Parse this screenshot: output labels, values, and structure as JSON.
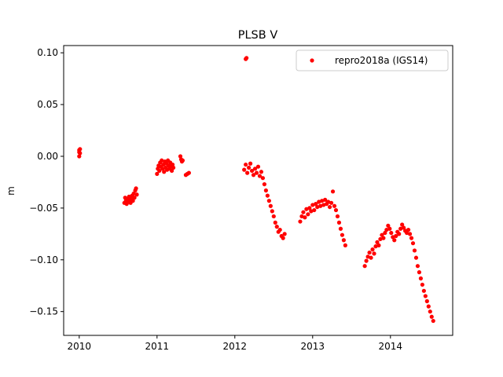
{
  "chart_data": {
    "type": "scatter",
    "title": "PLSB V",
    "xlabel": "",
    "ylabel": "m",
    "xlim": [
      2009.8,
      2014.8
    ],
    "ylim": [
      -0.173,
      0.107
    ],
    "xticks": [
      2010,
      2011,
      2012,
      2013,
      2014
    ],
    "xtick_labels": [
      "2010",
      "2011",
      "2012",
      "2013",
      "2014"
    ],
    "yticks": [
      0.1,
      0.05,
      0.0,
      -0.05,
      -0.1,
      -0.15
    ],
    "ytick_labels": [
      "0.10",
      "0.05",
      "0.00",
      "−0.05",
      "−0.10",
      "−0.15"
    ],
    "grid": false,
    "legend_position": "top-right",
    "series": [
      {
        "name": "repro2018a (IGS14)",
        "color": "#ff0000",
        "marker": "circle",
        "points": [
          [
            2010.0,
            0.0
          ],
          [
            2010.0,
            0.004
          ],
          [
            2010.0,
            0.006
          ],
          [
            2010.01,
            0.007
          ],
          [
            2010.01,
            0.003
          ],
          [
            2010.58,
            -0.045
          ],
          [
            2010.59,
            -0.04
          ],
          [
            2010.6,
            -0.043
          ],
          [
            2010.61,
            -0.046
          ],
          [
            2010.62,
            -0.041
          ],
          [
            2010.63,
            -0.044
          ],
          [
            2010.64,
            -0.039
          ],
          [
            2010.65,
            -0.042
          ],
          [
            2010.66,
            -0.045
          ],
          [
            2010.67,
            -0.04
          ],
          [
            2010.68,
            -0.038
          ],
          [
            2010.69,
            -0.043
          ],
          [
            2010.7,
            -0.036
          ],
          [
            2010.71,
            -0.04
          ],
          [
            2010.72,
            -0.033
          ],
          [
            2010.73,
            -0.031
          ],
          [
            2010.74,
            -0.037
          ],
          [
            2011.0,
            -0.017
          ],
          [
            2011.01,
            -0.012
          ],
          [
            2011.02,
            -0.009
          ],
          [
            2011.03,
            -0.014
          ],
          [
            2011.04,
            -0.006
          ],
          [
            2011.05,
            -0.01
          ],
          [
            2011.06,
            -0.004
          ],
          [
            2011.07,
            -0.012
          ],
          [
            2011.08,
            -0.008
          ],
          [
            2011.09,
            -0.015
          ],
          [
            2011.1,
            -0.005
          ],
          [
            2011.11,
            -0.011
          ],
          [
            2011.12,
            -0.007
          ],
          [
            2011.13,
            -0.013
          ],
          [
            2011.14,
            -0.004
          ],
          [
            2011.15,
            -0.009
          ],
          [
            2011.16,
            -0.012
          ],
          [
            2011.17,
            -0.006
          ],
          [
            2011.18,
            -0.01
          ],
          [
            2011.19,
            -0.014
          ],
          [
            2011.2,
            -0.008
          ],
          [
            2011.21,
            -0.011
          ],
          [
            2011.3,
            0.0
          ],
          [
            2011.31,
            -0.003
          ],
          [
            2011.32,
            -0.005
          ],
          [
            2011.33,
            -0.004
          ],
          [
            2011.37,
            -0.018
          ],
          [
            2011.39,
            -0.017
          ],
          [
            2011.41,
            -0.016
          ],
          [
            2012.14,
            0.094
          ],
          [
            2012.15,
            0.095
          ],
          [
            2012.12,
            -0.013
          ],
          [
            2012.14,
            -0.008
          ],
          [
            2012.16,
            -0.016
          ],
          [
            2012.18,
            -0.011
          ],
          [
            2012.2,
            -0.007
          ],
          [
            2012.22,
            -0.014
          ],
          [
            2012.24,
            -0.018
          ],
          [
            2012.26,
            -0.012
          ],
          [
            2012.28,
            -0.016
          ],
          [
            2012.3,
            -0.01
          ],
          [
            2012.32,
            -0.019
          ],
          [
            2012.34,
            -0.015
          ],
          [
            2012.36,
            -0.021
          ],
          [
            2012.38,
            -0.027
          ],
          [
            2012.4,
            -0.033
          ],
          [
            2012.42,
            -0.038
          ],
          [
            2012.44,
            -0.043
          ],
          [
            2012.46,
            -0.048
          ],
          [
            2012.48,
            -0.053
          ],
          [
            2012.5,
            -0.058
          ],
          [
            2012.52,
            -0.064
          ],
          [
            2012.54,
            -0.068
          ],
          [
            2012.56,
            -0.073
          ],
          [
            2012.58,
            -0.071
          ],
          [
            2012.6,
            -0.077
          ],
          [
            2012.62,
            -0.079
          ],
          [
            2012.64,
            -0.075
          ],
          [
            2012.84,
            -0.063
          ],
          [
            2012.86,
            -0.058
          ],
          [
            2012.88,
            -0.054
          ],
          [
            2012.9,
            -0.059
          ],
          [
            2012.92,
            -0.051
          ],
          [
            2012.94,
            -0.056
          ],
          [
            2012.96,
            -0.05
          ],
          [
            2012.98,
            -0.053
          ],
          [
            2013.0,
            -0.047
          ],
          [
            2013.02,
            -0.052
          ],
          [
            2013.04,
            -0.046
          ],
          [
            2013.06,
            -0.049
          ],
          [
            2013.08,
            -0.044
          ],
          [
            2013.1,
            -0.048
          ],
          [
            2013.12,
            -0.043
          ],
          [
            2013.14,
            -0.047
          ],
          [
            2013.16,
            -0.042
          ],
          [
            2013.18,
            -0.046
          ],
          [
            2013.2,
            -0.044
          ],
          [
            2013.22,
            -0.049
          ],
          [
            2013.24,
            -0.045
          ],
          [
            2013.26,
            -0.034
          ],
          [
            2013.28,
            -0.048
          ],
          [
            2013.3,
            -0.052
          ],
          [
            2013.32,
            -0.058
          ],
          [
            2013.34,
            -0.064
          ],
          [
            2013.36,
            -0.07
          ],
          [
            2013.38,
            -0.076
          ],
          [
            2013.4,
            -0.081
          ],
          [
            2013.42,
            -0.086
          ],
          [
            2013.67,
            -0.106
          ],
          [
            2013.69,
            -0.101
          ],
          [
            2013.71,
            -0.097
          ],
          [
            2013.73,
            -0.093
          ],
          [
            2013.75,
            -0.098
          ],
          [
            2013.77,
            -0.09
          ],
          [
            2013.79,
            -0.094
          ],
          [
            2013.81,
            -0.087
          ],
          [
            2013.83,
            -0.083
          ],
          [
            2013.85,
            -0.086
          ],
          [
            2013.87,
            -0.08
          ],
          [
            2013.89,
            -0.076
          ],
          [
            2013.91,
            -0.079
          ],
          [
            2013.93,
            -0.074
          ],
          [
            2013.95,
            -0.071
          ],
          [
            2013.97,
            -0.067
          ],
          [
            2013.99,
            -0.07
          ],
          [
            2014.01,
            -0.074
          ],
          [
            2014.03,
            -0.078
          ],
          [
            2014.05,
            -0.081
          ],
          [
            2014.07,
            -0.077
          ],
          [
            2014.09,
            -0.073
          ],
          [
            2014.11,
            -0.075
          ],
          [
            2014.13,
            -0.07
          ],
          [
            2014.15,
            -0.066
          ],
          [
            2014.17,
            -0.069
          ],
          [
            2014.19,
            -0.072
          ],
          [
            2014.21,
            -0.074
          ],
          [
            2014.23,
            -0.071
          ],
          [
            2014.25,
            -0.075
          ],
          [
            2014.27,
            -0.079
          ],
          [
            2014.29,
            -0.084
          ],
          [
            2014.31,
            -0.091
          ],
          [
            2014.33,
            -0.098
          ],
          [
            2014.35,
            -0.106
          ],
          [
            2014.37,
            -0.112
          ],
          [
            2014.39,
            -0.118
          ],
          [
            2014.41,
            -0.124
          ],
          [
            2014.43,
            -0.13
          ],
          [
            2014.45,
            -0.135
          ],
          [
            2014.47,
            -0.14
          ],
          [
            2014.49,
            -0.145
          ],
          [
            2014.51,
            -0.15
          ],
          [
            2014.53,
            -0.155
          ],
          [
            2014.55,
            -0.159
          ]
        ]
      }
    ]
  }
}
